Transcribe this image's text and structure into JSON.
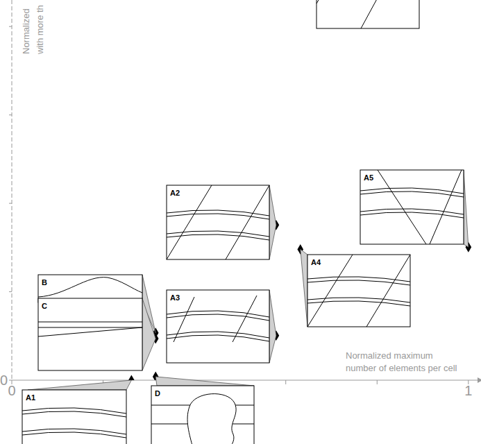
{
  "chart_data": {
    "type": "scatter",
    "x_label_lines": [
      "Normalized maximum",
      "number of elements per cell"
    ],
    "y_label_lines": [
      "Normalized",
      "with more th"
    ],
    "xlim": [
      0,
      1.02
    ],
    "ylim": [
      0,
      0.86
    ],
    "xticks": [
      {
        "value": 0,
        "label": "0"
      },
      {
        "value": 0.2,
        "label": null
      },
      {
        "value": 0.4,
        "label": null
      },
      {
        "value": 0.6,
        "label": null
      },
      {
        "value": 0.8,
        "label": null
      },
      {
        "value": 1,
        "label": "1"
      }
    ],
    "yticks": [
      {
        "value": 0,
        "label": "0"
      },
      {
        "value": 0.2,
        "label": null
      },
      {
        "value": 0.4,
        "label": null
      },
      {
        "value": 0.6,
        "label": null
      },
      {
        "value": 0.8,
        "label": null
      }
    ],
    "color": "#000000",
    "marker": "diamond",
    "points": [
      {
        "label": "A1",
        "x": 0.262,
        "y": 0
      },
      {
        "label": "D",
        "x": 0.315,
        "y": 0.008
      },
      {
        "label": "B",
        "x": 0.315,
        "y": 0.107
      },
      {
        "label": "C",
        "x": 0.315,
        "y": 0.094
      },
      {
        "label": "A2",
        "x": 0.579,
        "y": 0.351
      },
      {
        "label": "A3",
        "x": 0.579,
        "y": 0.101
      },
      {
        "label": "A4",
        "x": 0.632,
        "y": 0.296
      },
      {
        "label": "A5",
        "x": 1.0,
        "y": 0.301
      }
    ]
  }
}
